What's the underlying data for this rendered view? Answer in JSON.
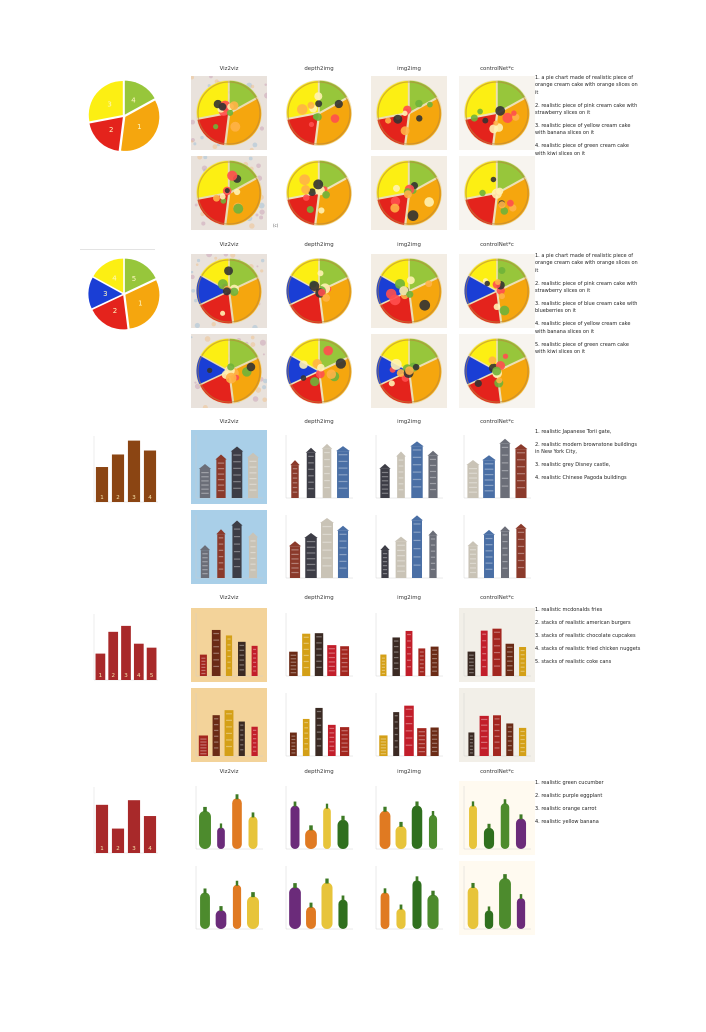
{
  "colors": {
    "orange": "#f5a60e",
    "yellow": "#fcef13",
    "green": "#97c63b",
    "red": "#e4231c",
    "blue": "#1a3ed5",
    "bar": "#8b4513",
    "bar_red": "#a8292a",
    "text": "#222222"
  },
  "headers": [
    "Viz2viz",
    "depth2img",
    "img2img",
    "controlNet*c"
  ],
  "stray_text": "(c)",
  "rows": [
    {
      "kind": "pie",
      "control": {
        "type": "pie",
        "slices": [
          {
            "label": "1",
            "fraction": 0.35,
            "color": "orange"
          },
          {
            "label": "2",
            "fraction": 0.2,
            "color": "red"
          },
          {
            "label": "3",
            "fraction": 0.28,
            "color": "yellow"
          },
          {
            "label": "4",
            "fraction": 0.17,
            "color": "green"
          }
        ]
      },
      "prompts": [
        "1. a pie chart made of realistic piece of orange cream cake with orange slices on it",
        "2. realistic piece of pink cream cake with strawberry slices on it",
        "3. realistic piece of yellow cream cake with banana slices on it",
        "4. realistic piece of green cream cake with kiwi slices on it"
      ]
    },
    {
      "kind": "pie",
      "control": {
        "type": "pie",
        "slices": [
          {
            "label": "1",
            "fraction": 0.3,
            "color": "orange"
          },
          {
            "label": "2",
            "fraction": 0.2,
            "color": "red"
          },
          {
            "label": "3",
            "fraction": 0.15,
            "color": "blue"
          },
          {
            "label": "4",
            "fraction": 0.17,
            "color": "yellow"
          },
          {
            "label": "5",
            "fraction": 0.18,
            "color": "green"
          }
        ]
      },
      "prompts": [
        "1. a pie chart made of realistic piece of orange cream cake with orange slices on it",
        "2. realistic piece of pink cream cake with strawberry slices on it",
        "3. realistic piece of blue cream cake with blueberries on it",
        "4. realistic piece of yellow cream cake with banana slices on it",
        "5. realistic piece of green cream cake with kiwi slices on it"
      ]
    },
    {
      "kind": "bar",
      "control": {
        "type": "bar",
        "categories": [
          "1",
          "2",
          "3",
          "4"
        ],
        "values": [
          0.53,
          0.72,
          0.93,
          0.78
        ],
        "color": "bar"
      },
      "prompts": [
        "1. realistic Japanese Torii gate,",
        "2. realistic modern brownstone buildings in New York City,",
        "3. realistic grey Disney castle,",
        "4. realistic Chinese Pagoda buildings"
      ]
    },
    {
      "kind": "bar",
      "control": {
        "type": "bar",
        "categories": [
          "1",
          "2",
          "3",
          "4",
          "5"
        ],
        "values": [
          0.4,
          0.73,
          0.82,
          0.55,
          0.49
        ],
        "color": "bar_red"
      },
      "prompts": [
        "1. realistic mcdonalds fries",
        "2. stacks of realistic american burgers",
        "3. stacks of realistic chocolate cupcakes",
        "4. stacks of realistic fried chicken nuggets",
        "5. stacks of realistic coke cans"
      ]
    },
    {
      "kind": "bar",
      "control": {
        "type": "bar",
        "categories": [
          "1",
          "2",
          "3",
          "4"
        ],
        "values": [
          0.73,
          0.37,
          0.8,
          0.56
        ],
        "color": "bar_red"
      },
      "prompts": [
        "1. realistic green cucumber",
        "2. realistic purple eggplant",
        "3. realistic orange carrot",
        "4. realistic yellow banana"
      ]
    }
  ]
}
